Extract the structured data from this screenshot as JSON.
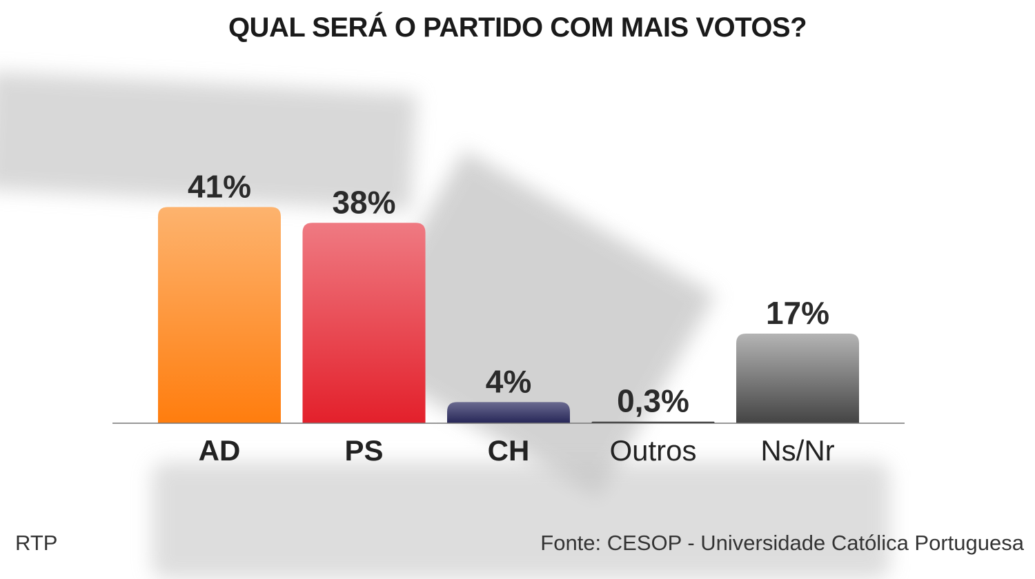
{
  "title": "QUAL SERÁ O PARTIDO COM MAIS VOTOS?",
  "chart_data": {
    "type": "bar",
    "title": "QUAL SERÁ O PARTIDO COM MAIS VOTOS?",
    "categories": [
      "AD",
      "PS",
      "CH",
      "Outros",
      "Ns/Nr"
    ],
    "values": [
      41,
      38,
      4,
      0.3,
      17
    ],
    "data_labels": [
      "41%",
      "38%",
      "4%",
      "0,3%",
      "17%"
    ],
    "colors": [
      [
        "#fdb36e",
        "#ff7d0e"
      ],
      [
        "#ef7a82",
        "#e3202b"
      ],
      [
        "#6a6a90",
        "#262657"
      ],
      [
        "#333333",
        "#333333"
      ],
      [
        "#b4b4b4",
        "#444444"
      ]
    ],
    "bold_category_labels": [
      true,
      true,
      true,
      false,
      false
    ],
    "xlabel": "",
    "ylabel": "",
    "grid": false,
    "legend": "none"
  },
  "footer": {
    "left": "RTP",
    "right": "Fonte: CESOP - Universidade Católica Portuguesa"
  }
}
